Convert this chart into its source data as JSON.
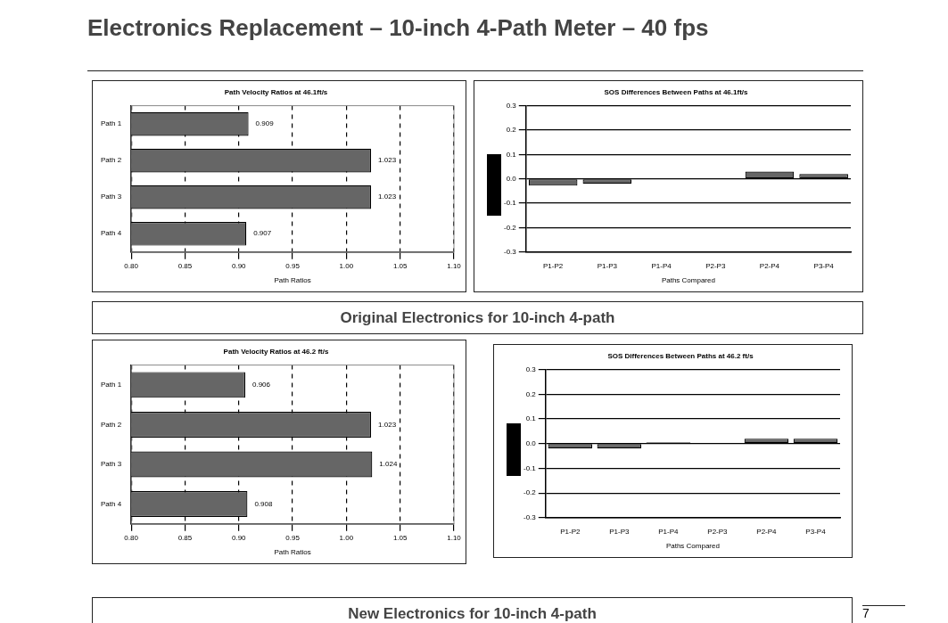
{
  "chart_data": [
    {
      "type": "other",
      "title": "Electronics Replacement – 10-inch 4-Path Meter – 40 fps"
    },
    {
      "type": "bar",
      "orientation": "horizontal",
      "title": "Path Velocity Ratios at 46.1ft/s",
      "xlabel": "Path Ratios",
      "categories": [
        "Path 1",
        "Path 2",
        "Path 3",
        "Path 4"
      ],
      "values": [
        0.909,
        1.023,
        1.023,
        0.907
      ],
      "color": "#666666",
      "data_labels": true,
      "xlim": [
        0.8,
        1.1
      ],
      "xticks": [
        {
          "value": 0.8,
          "label": "0.80"
        },
        {
          "value": 0.85,
          "label": "0.85"
        },
        {
          "value": 0.9,
          "label": "0.90"
        },
        {
          "value": 0.95,
          "label": "0.95"
        },
        {
          "value": 1.0,
          "label": "1.00"
        },
        {
          "value": 1.05,
          "label": "1.05"
        },
        {
          "value": 1.1,
          "label": "1.10"
        }
      ],
      "grid": "x",
      "legend": false
    },
    {
      "type": "bar",
      "title": "SOS Differences Between Paths at 46.1ft/s",
      "xlabel": "Paths Compared",
      "categories": [
        "P1-P2",
        "P1-P3",
        "P1-P4",
        "P2-P3",
        "P2-P4",
        "P3-P4"
      ],
      "values": [
        -0.028,
        -0.02,
        0,
        0,
        0.03,
        0.02
      ],
      "color": "#666666",
      "ylim": [
        -0.3,
        0.3
      ],
      "yticks": [
        {
          "value": -0.3,
          "label": "-0.3"
        },
        {
          "value": -0.2,
          "label": "-0.2"
        },
        {
          "value": -0.1,
          "label": "-0.1"
        },
        {
          "value": 0,
          "label": "0.0"
        },
        {
          "value": 0.1,
          "label": "0.1"
        },
        {
          "value": 0.2,
          "label": "0.2"
        },
        {
          "value": 0.3,
          "label": "0.3"
        }
      ],
      "grid": "y",
      "legend": false
    },
    {
      "type": "other",
      "title": "Original Electronics for 10-inch 4-path"
    },
    {
      "type": "bar",
      "orientation": "horizontal",
      "title": "Path Velocity Ratios at 46.2 ft/s",
      "xlabel": "Path Ratios",
      "categories": [
        "Path 1",
        "Path 2",
        "Path 3",
        "Path 4"
      ],
      "values": [
        0.906,
        1.023,
        1.024,
        0.908
      ],
      "color": "#666666",
      "data_labels": true,
      "xlim": [
        0.8,
        1.1
      ],
      "xticks": [
        {
          "value": 0.8,
          "label": "0.80"
        },
        {
          "value": 0.85,
          "label": "0.85"
        },
        {
          "value": 0.9,
          "label": "0.90"
        },
        {
          "value": 0.95,
          "label": "0.95"
        },
        {
          "value": 1.0,
          "label": "1.00"
        },
        {
          "value": 1.05,
          "label": "1.05"
        },
        {
          "value": 1.1,
          "label": "1.10"
        }
      ],
      "grid": "x",
      "legend": false
    },
    {
      "type": "bar",
      "title": "SOS Differences Between Paths at 46.2 ft/s",
      "xlabel": "Paths Compared",
      "categories": [
        "P1-P2",
        "P1-P3",
        "P1-P4",
        "P2-P3",
        "P2-P4",
        "P3-P4"
      ],
      "values": [
        -0.02,
        -0.02,
        0.005,
        0,
        0.02,
        0.02
      ],
      "color": "#666666",
      "ylim": [
        -0.3,
        0.3
      ],
      "yticks": [
        {
          "value": -0.3,
          "label": "-0.3"
        },
        {
          "value": -0.2,
          "label": "-0.2"
        },
        {
          "value": -0.1,
          "label": "-0.1"
        },
        {
          "value": 0,
          "label": "0.0"
        },
        {
          "value": 0.1,
          "label": "0.1"
        },
        {
          "value": 0.2,
          "label": "0.2"
        },
        {
          "value": 0.3,
          "label": "0.3"
        }
      ],
      "grid": "y",
      "legend": false
    },
    {
      "type": "other",
      "title": "New Electronics for 10-inch 4-path",
      "annotations": [
        "7"
      ]
    }
  ]
}
